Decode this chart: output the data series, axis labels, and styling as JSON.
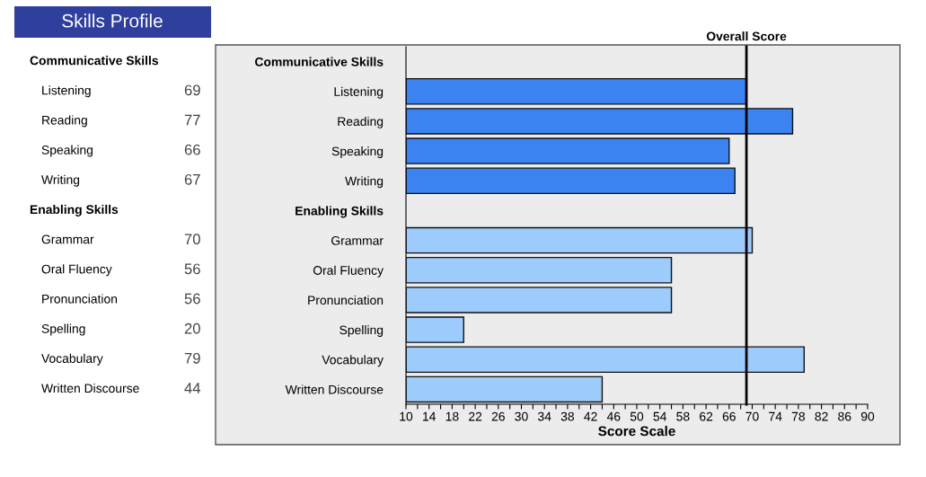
{
  "chart_data": {
    "type": "bar",
    "orientation": "horizontal",
    "title": "Skills Profile",
    "xlabel": "Score Scale",
    "categories": [
      "Communicative Skills",
      "Listening",
      "Reading",
      "Speaking",
      "Writing",
      "Enabling Skills",
      "Grammar",
      "Oral Fluency",
      "Pronunciation",
      "Spelling",
      "Vocabulary",
      "Written Discourse"
    ],
    "values": [
      null,
      69,
      77,
      66,
      67,
      null,
      70,
      56,
      56,
      20,
      79,
      44
    ],
    "colors": [
      null,
      "#3b83f1",
      "#3b83f1",
      "#3b83f1",
      "#3b83f1",
      null,
      "#9dcbfb",
      "#9dcbfb",
      "#9dcbfb",
      "#9dcbfb",
      "#9dcbfb",
      "#9dcbfb"
    ],
    "data_labels": true,
    "xlim": [
      10,
      90
    ],
    "xticks": [
      10,
      {
        "value": 12,
        "label": null
      },
      14,
      {
        "value": 16,
        "label": null
      },
      18,
      {
        "value": 20,
        "label": null
      },
      22,
      {
        "value": 24,
        "label": null
      },
      26,
      {
        "value": 28,
        "label": null
      },
      30,
      {
        "value": 32,
        "label": null
      },
      34,
      {
        "value": 36,
        "label": null
      },
      38,
      {
        "value": 40,
        "label": null
      },
      42,
      {
        "value": 44,
        "label": null
      },
      46,
      {
        "value": 48,
        "label": null
      },
      50,
      {
        "value": 52,
        "label": null
      },
      54,
      {
        "value": 56,
        "label": null
      },
      58,
      {
        "value": 60,
        "label": null
      },
      62,
      {
        "value": 64,
        "label": null
      },
      66,
      {
        "value": 68,
        "label": null
      },
      70,
      {
        "value": 72,
        "label": null
      },
      74,
      {
        "value": 76,
        "label": null
      },
      78,
      {
        "value": 80,
        "label": null
      },
      82,
      {
        "value": 84,
        "label": null
      },
      86,
      {
        "value": 88,
        "label": null
      },
      90
    ],
    "ref_lines": [
      {
        "axis": "x",
        "value": 69,
        "label": "Overall Score",
        "color": "#000000"
      }
    ],
    "grid": false
  }
}
